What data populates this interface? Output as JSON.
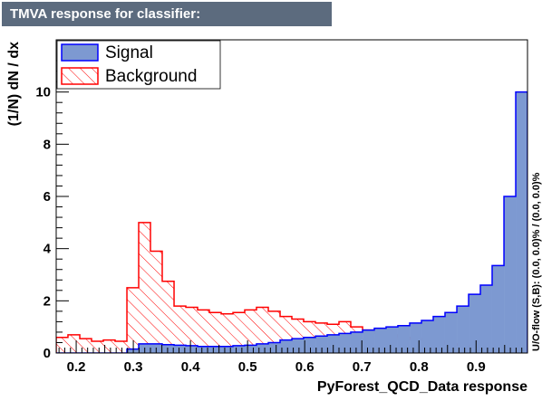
{
  "chart_data": {
    "type": "histogram",
    "title": "TMVA response for classifier: PyForest_QCD_Data",
    "xlabel": "PyForest_QCD_Data response",
    "ylabel": "(1/N) dN / dx",
    "side_note": "U/O-flow (S,B): (0.0, 0.0)% / (0.0, 0.0)%",
    "xlim": [
      0.165,
      0.99
    ],
    "ylim": [
      0,
      12
    ],
    "xticks": [
      "0.2",
      "0.3",
      "0.4",
      "0.5",
      "0.6",
      "0.7",
      "0.8",
      "0.9"
    ],
    "yticks": [
      "0",
      "2",
      "4",
      "6",
      "8",
      "10"
    ],
    "bin_edges": [
      0.165,
      0.1856,
      0.2063,
      0.2269,
      0.2475,
      0.2681,
      0.2888,
      0.3094,
      0.33,
      0.3506,
      0.3713,
      0.3919,
      0.4125,
      0.4331,
      0.4538,
      0.4744,
      0.495,
      0.5156,
      0.5363,
      0.5569,
      0.5775,
      0.5981,
      0.6188,
      0.6394,
      0.66,
      0.6806,
      0.7013,
      0.7219,
      0.7425,
      0.7631,
      0.7838,
      0.8044,
      0.825,
      0.8456,
      0.8663,
      0.8869,
      0.9075,
      0.9281,
      0.9488,
      0.9694,
      0.99
    ],
    "series": [
      {
        "name": "Signal",
        "fill": "#7d99d1",
        "line": "#0000ff",
        "values": [
          0,
          0,
          0,
          0,
          0,
          0,
          0.15,
          0.35,
          0.35,
          0.32,
          0.3,
          0.28,
          0.25,
          0.25,
          0.25,
          0.28,
          0.3,
          0.35,
          0.4,
          0.5,
          0.55,
          0.6,
          0.65,
          0.7,
          0.75,
          0.8,
          0.88,
          0.95,
          1.0,
          1.05,
          1.15,
          1.25,
          1.4,
          1.55,
          1.8,
          2.25,
          2.6,
          3.35,
          6.0,
          10.0
        ]
      },
      {
        "name": "Background",
        "fill": "hatched",
        "line": "#ff0000",
        "values": [
          0.6,
          0.7,
          0.55,
          0.45,
          0.5,
          0.45,
          2.5,
          5.0,
          3.9,
          2.75,
          1.8,
          1.75,
          1.65,
          1.55,
          1.5,
          1.55,
          1.65,
          1.75,
          1.6,
          1.4,
          1.3,
          1.2,
          1.15,
          1.1,
          1.2,
          1.0,
          0.88,
          0.75,
          0.7,
          0.6,
          0.55,
          0.5,
          0.45,
          0.35,
          0.3,
          0.15,
          0.1,
          0.05,
          0,
          0
        ]
      }
    ],
    "legend": {
      "entries": [
        "Signal",
        "Background"
      ],
      "position": "top-left"
    }
  }
}
